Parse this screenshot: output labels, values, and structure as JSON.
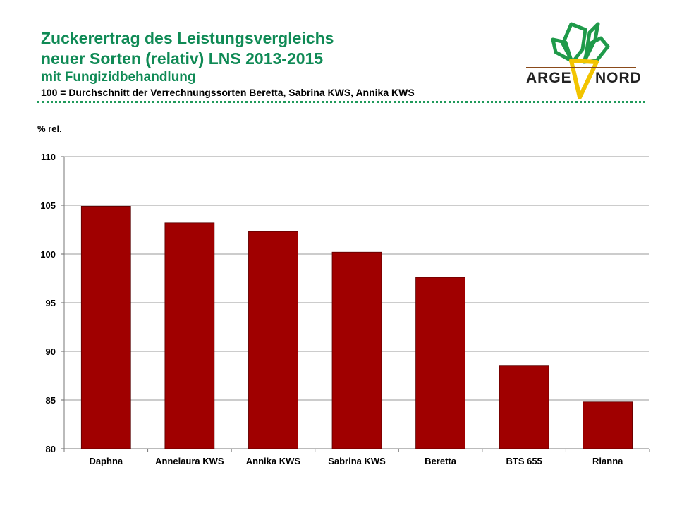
{
  "header": {
    "title_line1": "Zuckerertrag des Leistungsvergleichs",
    "title_line2": "neuer Sorten (relativ) LNS 2013-2015",
    "title_line3": "mit Fungizidbehandlung",
    "subtitle": "100 = Durchschnitt der Verrechnungssorten Beretta, Sabrina KWS, Annika KWS"
  },
  "logo": {
    "word_left": "ARGE",
    "word_right": "NORD"
  },
  "colors": {
    "title": "#0f8a55",
    "bar": "#a00000",
    "grid": "#9a9a9a"
  },
  "chart_data": {
    "type": "bar",
    "categories": [
      "Daphna",
      "Annelaura KWS",
      "Annika KWS",
      "Sabrina KWS",
      "Beretta",
      "BTS 655",
      "Rianna"
    ],
    "values": [
      104.9,
      103.2,
      102.3,
      100.2,
      97.6,
      88.5,
      84.8
    ],
    "ylabel": "% rel.",
    "ylim": [
      80,
      110
    ],
    "yticks": [
      80,
      85,
      90,
      95,
      100,
      105,
      110
    ],
    "grid": true
  }
}
